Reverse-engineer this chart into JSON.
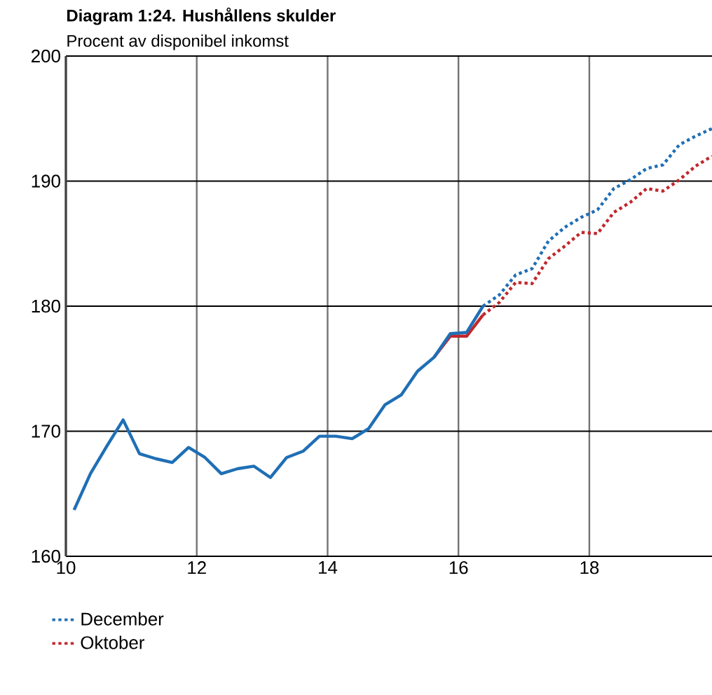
{
  "chart_data": {
    "type": "line",
    "title": "Diagram 1:24. Hushållens skulder",
    "subtitle": "Procent av disponibel inkomst",
    "xlim": [
      10,
      19.875
    ],
    "xticks": [
      10,
      12,
      14,
      16,
      18
    ],
    "ylim": [
      160,
      200
    ],
    "yticks": [
      160,
      170,
      180,
      190,
      200
    ],
    "grid": true,
    "legend": "bottom left",
    "marker": "none",
    "series": [
      {
        "color": "#c0282d",
        "line_style": "solid",
        "x": [
          15.625,
          15.875,
          16.125,
          16.375
        ],
        "values": [
          175.9,
          177.6,
          177.6,
          179.3
        ]
      },
      {
        "color": "#1f6fb5",
        "line_style": "solid",
        "x": [
          10.125,
          10.375,
          10.625,
          10.875,
          11.125,
          11.375,
          11.625,
          11.875,
          12.125,
          12.375,
          12.625,
          12.875,
          13.125,
          13.375,
          13.625,
          13.875,
          14.125,
          14.375,
          14.625,
          14.875,
          15.125,
          15.375,
          15.625,
          15.875,
          16.125,
          16.375
        ],
        "values": [
          163.7,
          166.6,
          168.8,
          170.9,
          168.2,
          167.8,
          167.5,
          168.7,
          167.9,
          166.6,
          167.0,
          167.2,
          166.3,
          167.9,
          168.4,
          169.6,
          169.6,
          169.4,
          170.2,
          172.1,
          172.9,
          174.8,
          175.9,
          177.8,
          177.9,
          180.0
        ]
      },
      {
        "name": "December",
        "color": "#1f6fb5",
        "line_style": "dotted",
        "x": [
          16.375,
          16.625,
          16.875,
          17.125,
          17.375,
          17.625,
          17.875,
          18.125,
          18.375,
          18.625,
          18.875,
          19.125,
          19.375,
          19.625,
          19.875
        ],
        "values": [
          180.0,
          180.9,
          182.5,
          183.0,
          185.2,
          186.3,
          187.1,
          187.7,
          189.4,
          190.1,
          191.0,
          191.3,
          192.9,
          193.6,
          194.2
        ]
      },
      {
        "name": "Oktober",
        "color": "#c0282d",
        "line_style": "dotted",
        "x": [
          16.375,
          16.625,
          16.875,
          17.125,
          17.375,
          17.625,
          17.875,
          18.125,
          18.375,
          18.625,
          18.875,
          19.125,
          19.375,
          19.625,
          19.875
        ],
        "values": [
          179.3,
          180.3,
          181.9,
          181.8,
          183.8,
          184.8,
          185.9,
          185.8,
          187.5,
          188.3,
          189.4,
          189.2,
          190.1,
          191.2,
          192.0
        ]
      }
    ]
  }
}
